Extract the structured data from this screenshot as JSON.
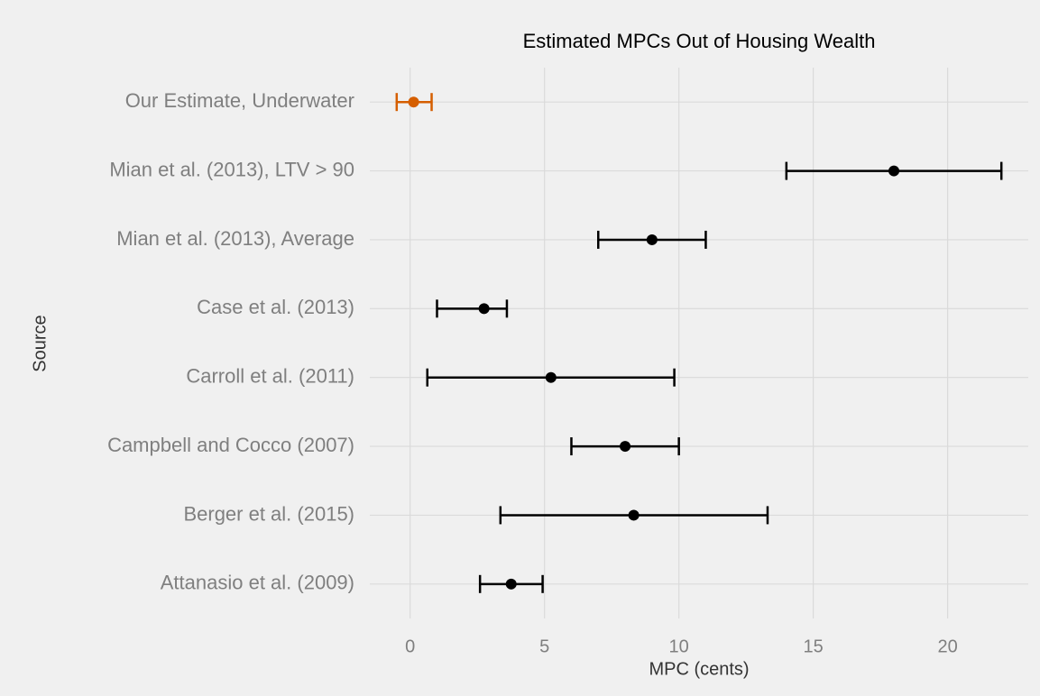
{
  "chart_data": {
    "type": "errorbar",
    "title": "Estimated MPCs Out of Housing Wealth",
    "x_label": "MPC (cents)",
    "y_label": "Source",
    "categories": [
      "Our Estimate, Underwater",
      "Mian et al. (2013), LTV > 90",
      "Mian et al. (2013), Average",
      "Case et al. (2013)",
      "Carroll et al. (2011)",
      "Campbell and Cocco (2007)",
      "Berger et al. (2015)",
      "Attanasio et al. (2009)"
    ],
    "values": [
      0.13,
      18,
      9,
      2.75,
      5.24,
      8,
      8.32,
      3.76
    ],
    "lower": [
      -0.5,
      14,
      7,
      1,
      0.64,
      6,
      3.36,
      2.6
    ],
    "upper": [
      0.8,
      22,
      11,
      3.6,
      9.83,
      10,
      13.3,
      4.93
    ],
    "colors": [
      "#d55e00",
      "#000000",
      "#000000",
      "#000000",
      "#000000",
      "#000000",
      "#000000",
      "#000000"
    ],
    "xlim": [
      -1.5,
      23
    ],
    "xticks": [
      0,
      5,
      10,
      15,
      20
    ],
    "grid": true
  }
}
